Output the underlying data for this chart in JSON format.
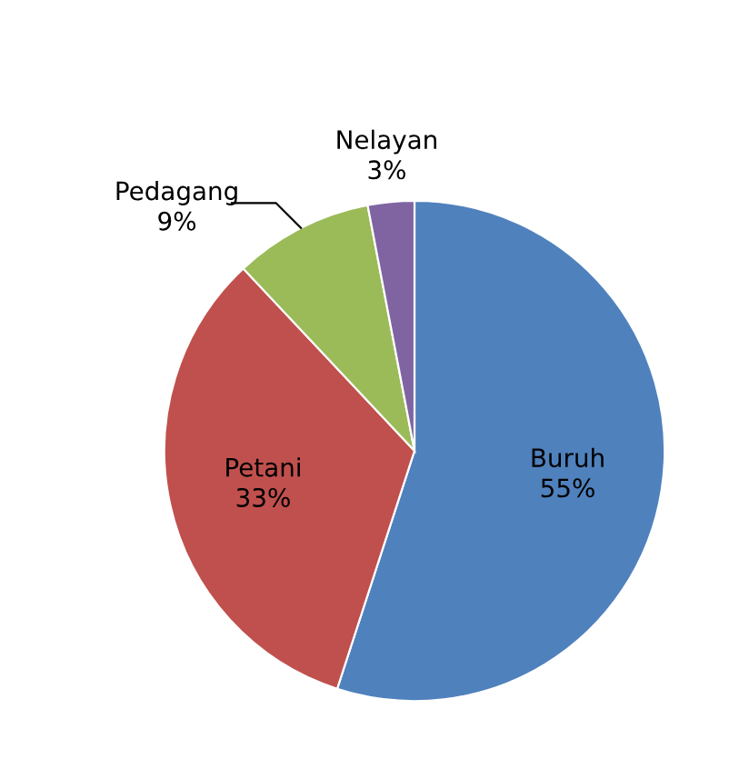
{
  "chart_data": {
    "type": "pie",
    "categories": [
      "Buruh",
      "Petani",
      "Pedagang",
      "Nelayan"
    ],
    "values": [
      55,
      33,
      9,
      3
    ],
    "value_labels": [
      "55%",
      "33%",
      "9%",
      "3%"
    ],
    "colors": [
      "#4f81bd",
      "#c0504d",
      "#9bbb59",
      "#8064a2"
    ]
  }
}
